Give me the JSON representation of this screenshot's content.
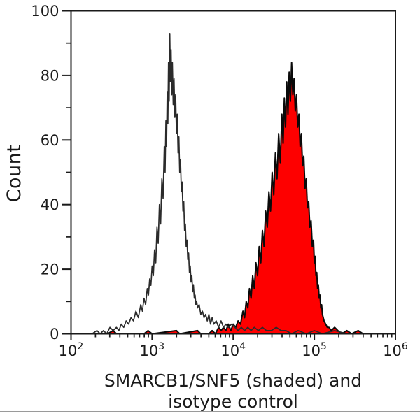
{
  "chart_data": {
    "type": "area",
    "subtype": "flow-cytometry-histogram-overlay",
    "title": "",
    "ylabel": "Count",
    "xlabel": "SMARCB1/SNF5 (shaded) and isotype control",
    "xlabel_lines": [
      "SMARCB1/SNF5 (shaded) and",
      "isotype control"
    ],
    "x_scale": "log10",
    "xlim": [
      100,
      1000000
    ],
    "ylim": [
      0,
      100
    ],
    "x_major_tick_exponents": [
      2,
      3,
      4,
      5,
      6
    ],
    "x_minor_tick_multiples": [
      2,
      3,
      4,
      5,
      6,
      7,
      8,
      9
    ],
    "y_major_ticks": [
      0,
      20,
      40,
      60,
      80,
      100
    ],
    "y_minor_ticks": [
      10,
      30,
      50,
      70,
      90
    ],
    "grid": false,
    "legend_position": "none",
    "colors": {
      "axis": "#1a1a1a",
      "text": "#1a1a1a",
      "open_line": "#2b2b2b",
      "shaded_fill": "#fe0000",
      "shaded_outline": "#0a0a0a",
      "divider": "#9a9a9a",
      "background": "#ffffff"
    },
    "series": [
      {
        "name": "SMARCB1/SNF5",
        "role": "shaded",
        "fill_color": "#fe0000",
        "line_color": "#0a0a0a",
        "peak": {
          "x_approx": 52000,
          "count_approx": 84
        },
        "points_x_log10_count": [
          [
            2.45,
            0
          ],
          [
            2.52,
            1
          ],
          [
            2.56,
            0
          ],
          [
            2.9,
            0
          ],
          [
            2.95,
            1
          ],
          [
            3.0,
            0
          ],
          [
            3.3,
            1
          ],
          [
            3.34,
            0
          ],
          [
            3.56,
            1
          ],
          [
            3.6,
            0
          ],
          [
            3.7,
            0
          ],
          [
            3.74,
            1
          ],
          [
            3.78,
            0
          ],
          [
            3.82,
            2
          ],
          [
            3.85,
            1
          ],
          [
            3.88,
            2
          ],
          [
            3.91,
            1
          ],
          [
            3.94,
            3
          ],
          [
            3.97,
            1
          ],
          [
            4.0,
            3
          ],
          [
            4.03,
            2
          ],
          [
            4.06,
            4
          ],
          [
            4.09,
            3
          ],
          [
            4.12,
            7
          ],
          [
            4.14,
            5
          ],
          [
            4.16,
            10
          ],
          [
            4.18,
            8
          ],
          [
            4.2,
            14
          ],
          [
            4.22,
            11
          ],
          [
            4.24,
            18
          ],
          [
            4.26,
            14
          ],
          [
            4.28,
            22
          ],
          [
            4.3,
            18
          ],
          [
            4.32,
            27
          ],
          [
            4.34,
            22
          ],
          [
            4.36,
            32
          ],
          [
            4.38,
            27
          ],
          [
            4.4,
            38
          ],
          [
            4.42,
            33
          ],
          [
            4.44,
            44
          ],
          [
            4.46,
            38
          ],
          [
            4.48,
            50
          ],
          [
            4.5,
            43
          ],
          [
            4.52,
            56
          ],
          [
            4.54,
            48
          ],
          [
            4.56,
            62
          ],
          [
            4.58,
            53
          ],
          [
            4.6,
            68
          ],
          [
            4.615,
            59
          ],
          [
            4.63,
            73
          ],
          [
            4.645,
            64
          ],
          [
            4.66,
            78
          ],
          [
            4.675,
            68
          ],
          [
            4.69,
            81
          ],
          [
            4.705,
            72
          ],
          [
            4.72,
            84
          ],
          [
            4.735,
            74
          ],
          [
            4.75,
            79
          ],
          [
            4.765,
            69
          ],
          [
            4.78,
            74
          ],
          [
            4.795,
            64
          ],
          [
            4.81,
            68
          ],
          [
            4.825,
            58
          ],
          [
            4.84,
            62
          ],
          [
            4.855,
            52
          ],
          [
            4.87,
            55
          ],
          [
            4.885,
            45
          ],
          [
            4.9,
            48
          ],
          [
            4.915,
            39
          ],
          [
            4.93,
            41
          ],
          [
            4.945,
            33
          ],
          [
            4.96,
            35
          ],
          [
            4.975,
            27
          ],
          [
            4.99,
            29
          ],
          [
            5.0,
            22
          ],
          [
            5.01,
            24
          ],
          [
            5.02,
            18
          ],
          [
            5.03,
            19
          ],
          [
            5.04,
            14
          ],
          [
            5.05,
            15
          ],
          [
            5.06,
            11
          ],
          [
            5.07,
            12
          ],
          [
            5.08,
            8
          ],
          [
            5.09,
            9
          ],
          [
            5.1,
            6
          ],
          [
            5.12,
            4
          ],
          [
            5.14,
            3
          ],
          [
            5.16,
            2
          ],
          [
            5.18,
            2
          ],
          [
            5.21,
            1
          ],
          [
            5.25,
            2
          ],
          [
            5.29,
            1
          ],
          [
            5.34,
            0
          ],
          [
            5.4,
            1
          ],
          [
            5.46,
            0
          ],
          [
            5.54,
            1
          ],
          [
            5.6,
            0
          ],
          [
            5.72,
            0
          ],
          [
            5.9,
            0
          ]
        ]
      },
      {
        "name": "isotype control",
        "role": "open",
        "fill_color": "none",
        "line_color": "#2b2b2b",
        "peak": {
          "x_approx": 1650,
          "count_approx": 93
        },
        "points_x_log10_count": [
          [
            2.02,
            0
          ],
          [
            2.1,
            0
          ],
          [
            2.18,
            0
          ],
          [
            2.26,
            0
          ],
          [
            2.32,
            1
          ],
          [
            2.36,
            0
          ],
          [
            2.4,
            1
          ],
          [
            2.44,
            0
          ],
          [
            2.48,
            2
          ],
          [
            2.52,
            1
          ],
          [
            2.56,
            2
          ],
          [
            2.59,
            1
          ],
          [
            2.62,
            3
          ],
          [
            2.65,
            2
          ],
          [
            2.68,
            4
          ],
          [
            2.71,
            3
          ],
          [
            2.74,
            5
          ],
          [
            2.77,
            4
          ],
          [
            2.8,
            7
          ],
          [
            2.83,
            5
          ],
          [
            2.86,
            9
          ],
          [
            2.88,
            7
          ],
          [
            2.9,
            11
          ],
          [
            2.92,
            9
          ],
          [
            2.94,
            14
          ],
          [
            2.955,
            12
          ],
          [
            2.97,
            17
          ],
          [
            2.985,
            15
          ],
          [
            3.0,
            21
          ],
          [
            3.015,
            18
          ],
          [
            3.03,
            26
          ],
          [
            3.045,
            22
          ],
          [
            3.06,
            33
          ],
          [
            3.075,
            28
          ],
          [
            3.09,
            40
          ],
          [
            3.105,
            34
          ],
          [
            3.12,
            48
          ],
          [
            3.135,
            42
          ],
          [
            3.15,
            58
          ],
          [
            3.16,
            50
          ],
          [
            3.17,
            66
          ],
          [
            3.178,
            58
          ],
          [
            3.186,
            75
          ],
          [
            3.194,
            65
          ],
          [
            3.202,
            84
          ],
          [
            3.21,
            72
          ],
          [
            3.218,
            93
          ],
          [
            3.226,
            78
          ],
          [
            3.234,
            88
          ],
          [
            3.242,
            74
          ],
          [
            3.25,
            84
          ],
          [
            3.26,
            71
          ],
          [
            3.27,
            79
          ],
          [
            3.28,
            67
          ],
          [
            3.29,
            74
          ],
          [
            3.3,
            62
          ],
          [
            3.31,
            68
          ],
          [
            3.32,
            56
          ],
          [
            3.33,
            61
          ],
          [
            3.34,
            50
          ],
          [
            3.35,
            54
          ],
          [
            3.36,
            44
          ],
          [
            3.37,
            47
          ],
          [
            3.38,
            38
          ],
          [
            3.39,
            41
          ],
          [
            3.4,
            32
          ],
          [
            3.41,
            34
          ],
          [
            3.42,
            27
          ],
          [
            3.43,
            29
          ],
          [
            3.44,
            23
          ],
          [
            3.45,
            25
          ],
          [
            3.46,
            19
          ],
          [
            3.47,
            21
          ],
          [
            3.48,
            16
          ],
          [
            3.49,
            18
          ],
          [
            3.5,
            13
          ],
          [
            3.51,
            15
          ],
          [
            3.52,
            11
          ],
          [
            3.53,
            12
          ],
          [
            3.54,
            9
          ],
          [
            3.55,
            10
          ],
          [
            3.56,
            8
          ],
          [
            3.58,
            9
          ],
          [
            3.6,
            6
          ],
          [
            3.62,
            7
          ],
          [
            3.64,
            5
          ],
          [
            3.66,
            6
          ],
          [
            3.68,
            4
          ],
          [
            3.7,
            6
          ],
          [
            3.72,
            3
          ],
          [
            3.74,
            5
          ],
          [
            3.76,
            3
          ],
          [
            3.79,
            4
          ],
          [
            3.82,
            2
          ],
          [
            3.85,
            4
          ],
          [
            3.88,
            2
          ],
          [
            3.91,
            3
          ],
          [
            3.94,
            2
          ],
          [
            3.98,
            3
          ],
          [
            4.02,
            2
          ],
          [
            4.06,
            1
          ],
          [
            4.1,
            2
          ],
          [
            4.14,
            1
          ],
          [
            4.18,
            2
          ],
          [
            4.22,
            1
          ],
          [
            4.26,
            2
          ],
          [
            4.31,
            1
          ],
          [
            4.36,
            2
          ],
          [
            4.41,
            1
          ],
          [
            4.47,
            1
          ],
          [
            4.53,
            2
          ],
          [
            4.59,
            1
          ],
          [
            4.65,
            1
          ],
          [
            4.72,
            0
          ],
          [
            4.8,
            1
          ],
          [
            4.9,
            0
          ],
          [
            5.0,
            1
          ],
          [
            5.1,
            0
          ],
          [
            5.25,
            1
          ],
          [
            5.4,
            0
          ],
          [
            5.6,
            0
          ],
          [
            5.8,
            0
          ],
          [
            5.98,
            0
          ]
        ]
      }
    ]
  }
}
